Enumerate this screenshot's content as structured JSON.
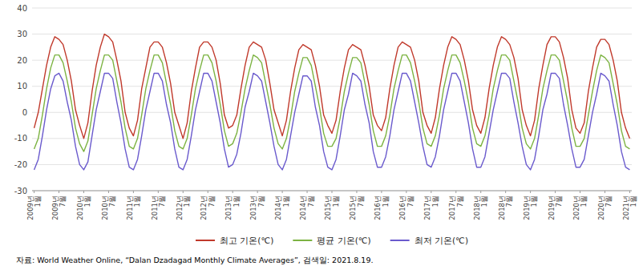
{
  "chart_data": {
    "type": "line",
    "source": "자료: World Weather Online, “Dalan Dzadagad Monthly Climate Averages”, 검색일: 2021.8.19.",
    "categories": [
      "2009년\n1월",
      null,
      null,
      null,
      null,
      null,
      "2009년\n7월",
      null,
      null,
      null,
      null,
      null,
      "2010년\n1월",
      null,
      null,
      null,
      null,
      null,
      "2010년\n7월",
      null,
      null,
      null,
      null,
      null,
      "2011년\n1월",
      null,
      null,
      null,
      null,
      null,
      "2011년\n7월",
      null,
      null,
      null,
      null,
      null,
      "2012년\n1월",
      null,
      null,
      null,
      null,
      null,
      "2012년\n7월",
      null,
      null,
      null,
      null,
      null,
      "2013년\n1월",
      null,
      null,
      null,
      null,
      null,
      "2013년\n7월",
      null,
      null,
      null,
      null,
      null,
      "2014년\n1월",
      null,
      null,
      null,
      null,
      null,
      "2014년\n7월",
      null,
      null,
      null,
      null,
      null,
      "2015년\n1월",
      null,
      null,
      null,
      null,
      null,
      "2015년\n7월",
      null,
      null,
      null,
      null,
      null,
      "2016년\n1월",
      null,
      null,
      null,
      null,
      null,
      "2016년\n7월",
      null,
      null,
      null,
      null,
      null,
      "2017년\n1월",
      null,
      null,
      null,
      null,
      null,
      "2017년\n7월",
      null,
      null,
      null,
      null,
      null,
      "2018년\n1월",
      null,
      null,
      null,
      null,
      null,
      "2018년\n7월",
      null,
      null,
      null,
      null,
      null,
      "2019년\n1월",
      null,
      null,
      null,
      null,
      null,
      "2019년\n7월",
      null,
      null,
      null,
      null,
      null,
      "2020년\n1월",
      null,
      null,
      null,
      null,
      null,
      "2020년\n7월",
      null,
      null,
      null,
      null,
      null,
      "2021년\n1월"
    ],
    "series": [
      {
        "name": "최고 기온(℃)",
        "color": "#C0392B",
        "values": [
          -6,
          0,
          9,
          18,
          25,
          29,
          28,
          26,
          20,
          12,
          1,
          -5,
          -10,
          -4,
          8,
          18,
          25,
          30,
          29,
          27,
          20,
          12,
          0,
          -6,
          -9,
          -3,
          9,
          17,
          25,
          27,
          27,
          25,
          19,
          11,
          0,
          -5,
          -10,
          -4,
          8,
          17,
          25,
          27,
          27,
          25,
          20,
          11,
          -1,
          -6,
          -5,
          -1,
          9,
          18,
          25,
          27,
          26,
          25,
          20,
          11,
          1,
          -4,
          -9,
          -3,
          8,
          17,
          24,
          26,
          25,
          24,
          18,
          10,
          -1,
          -5,
          -8,
          -3,
          8,
          17,
          24,
          26,
          25,
          24,
          18,
          10,
          -1,
          -5,
          -7,
          -2,
          9,
          18,
          25,
          27,
          26,
          25,
          20,
          12,
          0,
          -5,
          -8,
          -2,
          9,
          18,
          25,
          29,
          28,
          26,
          20,
          12,
          1,
          -5,
          -8,
          -2,
          9,
          18,
          25,
          29,
          28,
          26,
          21,
          13,
          1,
          -5,
          -9,
          -3,
          9,
          18,
          26,
          29,
          29,
          27,
          21,
          13,
          1,
          -6,
          -8,
          -4,
          8,
          17,
          25,
          28,
          28,
          26,
          20,
          12,
          0,
          -6,
          -10
        ]
      },
      {
        "name": "평균 기온(℃)",
        "color": "#7CB342",
        "values": [
          -14,
          -10,
          -1,
          9,
          17,
          22,
          22,
          19,
          12,
          4,
          -6,
          -12,
          -15,
          -11,
          -1,
          9,
          16,
          22,
          22,
          20,
          12,
          4,
          -6,
          -13,
          -14,
          -10,
          -1,
          9,
          16,
          22,
          22,
          19,
          11,
          3,
          -7,
          -13,
          -14,
          -10,
          -1,
          9,
          16,
          22,
          22,
          19,
          12,
          3,
          -7,
          -13,
          -12,
          -8,
          0,
          9,
          16,
          22,
          21,
          19,
          11,
          3,
          -6,
          -12,
          -14,
          -10,
          -2,
          8,
          15,
          21,
          21,
          18,
          10,
          2,
          -8,
          -13,
          -13,
          -10,
          -2,
          8,
          15,
          21,
          21,
          19,
          11,
          3,
          -7,
          -13,
          -13,
          -9,
          -1,
          9,
          16,
          22,
          22,
          19,
          12,
          4,
          -6,
          -12,
          -13,
          -9,
          -1,
          9,
          16,
          22,
          22,
          19,
          12,
          4,
          -6,
          -12,
          -13,
          -9,
          -1,
          9,
          16,
          22,
          22,
          20,
          12,
          4,
          -6,
          -12,
          -14,
          -10,
          -1,
          9,
          16,
          22,
          22,
          20,
          12,
          4,
          -6,
          -13,
          -13,
          -10,
          -1,
          8,
          16,
          22,
          21,
          19,
          11,
          3,
          -7,
          -13,
          -14
        ]
      },
      {
        "name": "최저 기온(℃)",
        "color": "#6A5ACD",
        "values": [
          -22,
          -18,
          -9,
          1,
          9,
          14,
          15,
          12,
          4,
          -3,
          -13,
          -20,
          -22,
          -19,
          -9,
          1,
          8,
          15,
          15,
          13,
          4,
          -4,
          -14,
          -21,
          -22,
          -18,
          -9,
          1,
          8,
          15,
          15,
          12,
          3,
          -4,
          -14,
          -21,
          -22,
          -18,
          -9,
          1,
          8,
          15,
          15,
          12,
          4,
          -4,
          -14,
          -21,
          -20,
          -16,
          -8,
          2,
          8,
          15,
          14,
          12,
          4,
          -4,
          -13,
          -20,
          -22,
          -18,
          -9,
          0,
          7,
          14,
          14,
          12,
          2,
          -5,
          -15,
          -21,
          -22,
          -18,
          -9,
          1,
          7,
          15,
          14,
          12,
          3,
          -4,
          -15,
          -21,
          -21,
          -17,
          -9,
          1,
          8,
          15,
          15,
          12,
          4,
          -4,
          -13,
          -20,
          -21,
          -17,
          -9,
          1,
          8,
          15,
          15,
          12,
          4,
          -4,
          -14,
          -21,
          -21,
          -17,
          -8,
          1,
          8,
          15,
          15,
          13,
          4,
          -4,
          -13,
          -20,
          -22,
          -18,
          -9,
          1,
          7,
          15,
          15,
          13,
          3,
          -5,
          -14,
          -21,
          -21,
          -18,
          -9,
          0,
          7,
          15,
          14,
          12,
          3,
          -5,
          -15,
          -21,
          -22
        ]
      }
    ],
    "ylim": [
      -30,
      40
    ],
    "yticks": [
      -30,
      -20,
      -10,
      0,
      10,
      20,
      30,
      40
    ],
    "grid": true,
    "legend": "bottom"
  }
}
